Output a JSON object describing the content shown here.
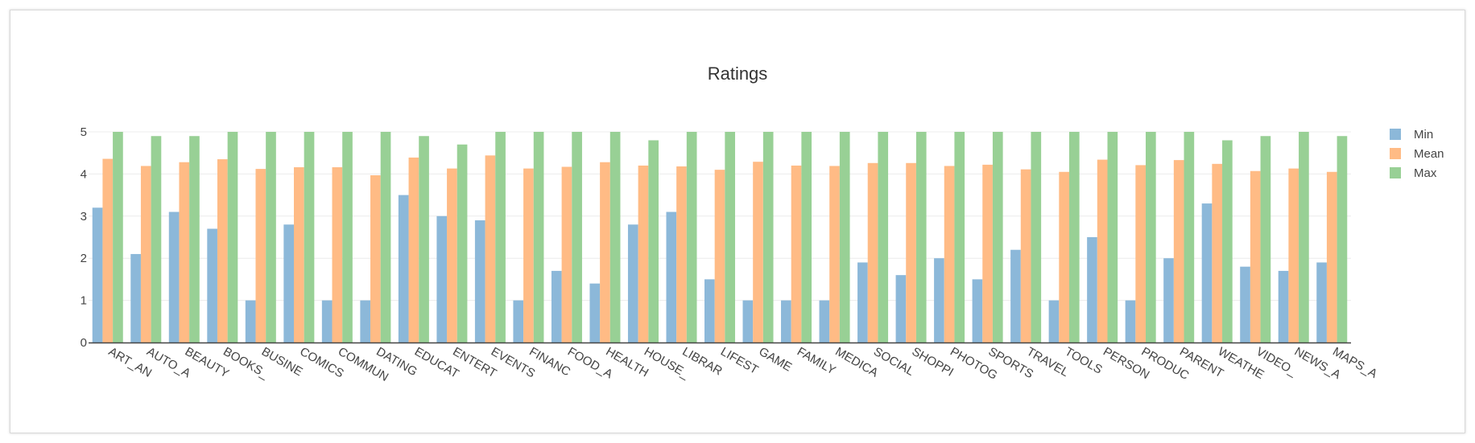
{
  "chart_data": {
    "type": "bar",
    "title": "Ratings",
    "xlabel": "",
    "ylabel": "",
    "ylim": [
      0,
      5
    ],
    "y_ticks": [
      "0",
      "1",
      "2",
      "3",
      "4",
      "5"
    ],
    "grid": true,
    "legend_position": "top-right",
    "categories": [
      "ART_AN",
      "AUTO_A",
      "BEAUTY",
      "BOOKS_",
      "BUSINE",
      "COMICS",
      "COMMUN",
      "DATING",
      "EDUCAT",
      "ENTERT",
      "EVENTS",
      "FINANC",
      "FOOD_A",
      "HEALTH",
      "HOUSE_",
      "LIBRAR",
      "LIFEST",
      "GAME",
      "FAMILY",
      "MEDICA",
      "SOCIAL",
      "SHOPPI",
      "PHOTOG",
      "SPORTS",
      "TRAVEL",
      "TOOLS",
      "PERSON",
      "PRODUC",
      "PARENT",
      "WEATHE",
      "VIDEO_",
      "NEWS_A",
      "MAPS_A"
    ],
    "series": [
      {
        "name": "Min",
        "color": "#8cb8d9",
        "values": [
          3.2,
          2.1,
          3.1,
          2.7,
          1.0,
          2.8,
          1.0,
          1.0,
          3.5,
          3.0,
          2.9,
          1.0,
          1.7,
          1.4,
          2.8,
          3.1,
          1.5,
          1.0,
          1.0,
          1.0,
          1.9,
          1.6,
          2.0,
          1.5,
          2.2,
          1.0,
          2.5,
          1.0,
          2.0,
          3.3,
          1.8,
          1.7,
          1.9
        ]
      },
      {
        "name": "Mean",
        "color": "#ffbb85",
        "values": [
          4.36,
          4.19,
          4.28,
          4.35,
          4.12,
          4.16,
          4.16,
          3.97,
          4.39,
          4.13,
          4.44,
          4.13,
          4.17,
          4.28,
          4.2,
          4.18,
          4.1,
          4.29,
          4.2,
          4.19,
          4.26,
          4.26,
          4.19,
          4.22,
          4.11,
          4.05,
          4.34,
          4.21,
          4.33,
          4.24,
          4.07,
          4.13,
          4.05
        ]
      },
      {
        "name": "Max",
        "color": "#98d095",
        "values": [
          5.0,
          4.9,
          4.9,
          5.0,
          5.0,
          5.0,
          5.0,
          5.0,
          4.9,
          4.7,
          5.0,
          5.0,
          5.0,
          5.0,
          4.8,
          5.0,
          5.0,
          5.0,
          5.0,
          5.0,
          5.0,
          5.0,
          5.0,
          5.0,
          5.0,
          5.0,
          5.0,
          5.0,
          5.0,
          4.8,
          4.9,
          5.0,
          4.9
        ]
      }
    ]
  }
}
